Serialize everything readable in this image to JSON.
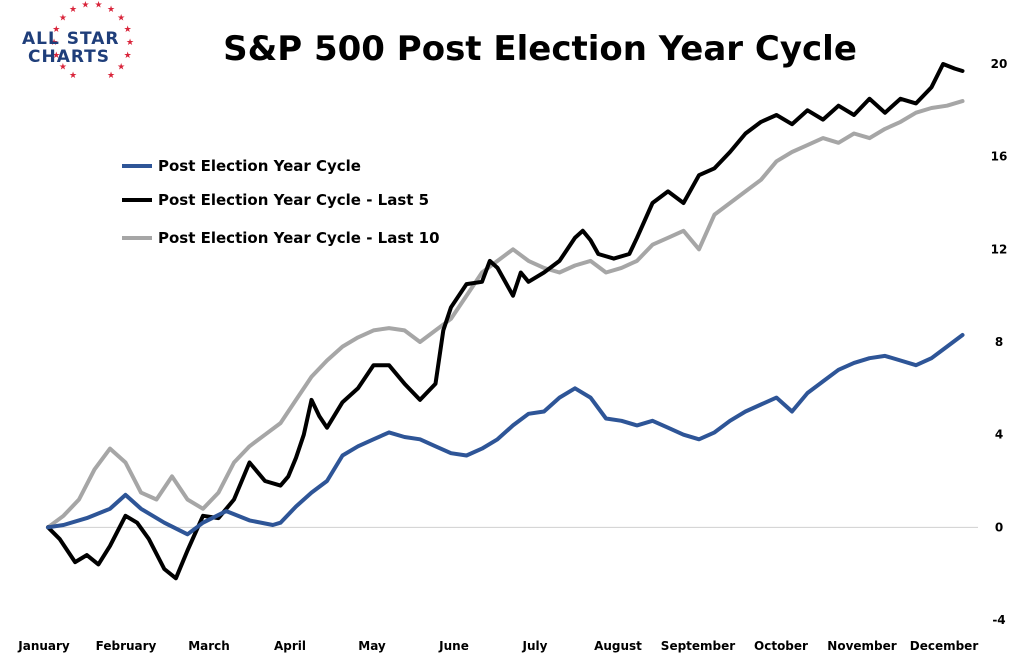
{
  "logo": {
    "line1": "ALL STAR",
    "line2": "CHARTS"
  },
  "chart_data": {
    "type": "line",
    "title": "S&P 500 Post Election Year Cycle",
    "xlabel": "",
    "ylabel": "",
    "ylim": [
      -4,
      20
    ],
    "yticks": [
      -4,
      0,
      4,
      8,
      12,
      16,
      20
    ],
    "y_axis_side": "right",
    "grid": false,
    "legend_position": "top-left",
    "months": [
      "January",
      "February",
      "March",
      "April",
      "May",
      "June",
      "July",
      "August",
      "September",
      "October",
      "November",
      "December"
    ],
    "series": [
      {
        "name": "Post Election Year Cycle",
        "color": "#2e5597",
        "stroke": 4,
        "x": [
          0,
          0.2,
          0.5,
          0.8,
          1.0,
          1.2,
          1.5,
          1.8,
          2.0,
          2.3,
          2.6,
          2.9,
          3.0,
          3.2,
          3.4,
          3.6,
          3.8,
          4.0,
          4.2,
          4.4,
          4.6,
          4.8,
          5.0,
          5.2,
          5.4,
          5.6,
          5.8,
          6.0,
          6.2,
          6.4,
          6.6,
          6.8,
          7.0,
          7.2,
          7.4,
          7.6,
          7.8,
          8.0,
          8.2,
          8.4,
          8.6,
          8.8,
          9.0,
          9.2,
          9.4,
          9.6,
          9.8,
          10.0,
          10.2,
          10.4,
          10.6,
          10.8,
          11.0,
          11.2,
          11.4,
          11.6,
          11.8
        ],
        "values": [
          0,
          0.1,
          0.4,
          0.8,
          1.4,
          0.8,
          0.2,
          -0.3,
          0.2,
          0.7,
          0.3,
          0.1,
          0.2,
          0.9,
          1.5,
          2.0,
          3.1,
          3.5,
          3.8,
          4.1,
          3.9,
          3.8,
          3.5,
          3.2,
          3.1,
          3.4,
          3.8,
          4.4,
          4.9,
          5.0,
          5.6,
          6.0,
          5.6,
          4.7,
          4.6,
          4.4,
          4.6,
          4.3,
          4.0,
          3.8,
          4.1,
          4.6,
          5.0,
          5.3,
          5.6,
          5.0,
          5.8,
          6.3,
          6.8,
          7.1,
          7.3,
          7.4,
          7.2,
          7.0,
          7.3,
          7.8,
          8.3
        ]
      },
      {
        "name": "Post Election Year Cycle - Last 5",
        "color": "#000000",
        "stroke": 4,
        "x": [
          0,
          0.15,
          0.35,
          0.5,
          0.65,
          0.8,
          1.0,
          1.15,
          1.3,
          1.5,
          1.65,
          1.8,
          2.0,
          2.2,
          2.4,
          2.6,
          2.8,
          3.0,
          3.1,
          3.2,
          3.3,
          3.4,
          3.5,
          3.6,
          3.8,
          4.0,
          4.2,
          4.4,
          4.6,
          4.8,
          5.0,
          5.1,
          5.2,
          5.4,
          5.6,
          5.7,
          5.8,
          6.0,
          6.1,
          6.2,
          6.4,
          6.6,
          6.8,
          6.9,
          7.0,
          7.1,
          7.3,
          7.5,
          7.6,
          7.8,
          8.0,
          8.2,
          8.4,
          8.6,
          8.8,
          9.0,
          9.2,
          9.4,
          9.6,
          9.8,
          10.0,
          10.2,
          10.4,
          10.6,
          10.8,
          11.0,
          11.2,
          11.4,
          11.55,
          11.7,
          11.8
        ],
        "values": [
          0,
          -0.5,
          -1.5,
          -1.2,
          -1.6,
          -0.8,
          0.5,
          0.2,
          -0.5,
          -1.8,
          -2.2,
          -1.0,
          0.5,
          0.4,
          1.2,
          2.8,
          2.0,
          1.8,
          2.2,
          3.0,
          4.0,
          5.5,
          4.8,
          4.3,
          5.4,
          6.0,
          7.0,
          7.0,
          6.2,
          5.5,
          6.2,
          8.5,
          9.5,
          10.5,
          10.6,
          11.5,
          11.2,
          10.0,
          11.0,
          10.6,
          11.0,
          11.5,
          12.5,
          12.8,
          12.4,
          11.8,
          11.6,
          11.8,
          12.5,
          14.0,
          14.5,
          14.0,
          15.2,
          15.5,
          16.2,
          17.0,
          17.5,
          17.8,
          17.4,
          18.0,
          17.6,
          18.2,
          17.8,
          18.5,
          17.9,
          18.5,
          18.3,
          19.0,
          20.0,
          19.8,
          19.7
        ]
      },
      {
        "name": "Post Election Year Cycle - Last 10",
        "color": "#a6a6a6",
        "stroke": 4,
        "x": [
          0,
          0.2,
          0.4,
          0.6,
          0.8,
          1.0,
          1.2,
          1.4,
          1.6,
          1.8,
          2.0,
          2.2,
          2.4,
          2.6,
          2.8,
          3.0,
          3.2,
          3.4,
          3.6,
          3.8,
          4.0,
          4.2,
          4.4,
          4.6,
          4.8,
          5.0,
          5.2,
          5.4,
          5.6,
          5.8,
          6.0,
          6.2,
          6.4,
          6.6,
          6.8,
          7.0,
          7.2,
          7.4,
          7.6,
          7.8,
          8.0,
          8.2,
          8.4,
          8.6,
          8.8,
          9.0,
          9.2,
          9.4,
          9.6,
          9.8,
          10.0,
          10.2,
          10.4,
          10.6,
          10.8,
          11.0,
          11.2,
          11.4,
          11.6,
          11.8
        ],
        "values": [
          0,
          0.5,
          1.2,
          2.5,
          3.4,
          2.8,
          1.5,
          1.2,
          2.2,
          1.2,
          0.8,
          1.5,
          2.8,
          3.5,
          4.0,
          4.5,
          5.5,
          6.5,
          7.2,
          7.8,
          8.2,
          8.5,
          8.6,
          8.5,
          8.0,
          8.5,
          9.0,
          10.0,
          11.0,
          11.5,
          12.0,
          11.5,
          11.2,
          11.0,
          11.3,
          11.5,
          11.0,
          11.2,
          11.5,
          12.2,
          12.5,
          12.8,
          12.0,
          13.5,
          14.0,
          14.5,
          15.0,
          15.8,
          16.2,
          16.5,
          16.8,
          16.6,
          17.0,
          16.8,
          17.2,
          17.5,
          17.9,
          18.1,
          18.2,
          18.4
        ]
      }
    ]
  }
}
